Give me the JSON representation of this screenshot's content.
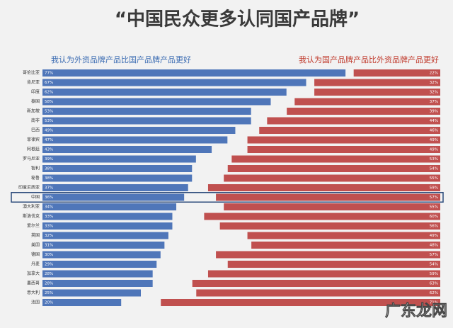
{
  "chart_data": {
    "type": "butterfly-bar",
    "title": "“中国民众更多认同国产品牌”",
    "categories": [
      "哥伦比亚",
      "肯尼亚",
      "印度",
      "泰国",
      "新加坡",
      "南非",
      "巴西",
      "菲律宾",
      "阿根廷",
      "罗马尼亚",
      "智利",
      "秘鲁",
      "印度尼西亚",
      "中国",
      "澳大利亚",
      "斯洛伐克",
      "爱尔兰",
      "英国",
      "美国",
      "德国",
      "丹麦",
      "加拿大",
      "墨西哥",
      "意大利",
      "法国"
    ],
    "series": [
      {
        "name": "我认为外资品牌产品比国产品牌产品更好",
        "color": "#4f76b9",
        "values": [
          77,
          67,
          62,
          58,
          53,
          53,
          49,
          47,
          43,
          39,
          38,
          38,
          37,
          36,
          34,
          33,
          33,
          32,
          31,
          30,
          29,
          28,
          28,
          25,
          20
        ],
        "value_labels": [
          "77%",
          "67%",
          "62%",
          "58%",
          "53%",
          "53%",
          "49%",
          "47%",
          "43%",
          "39%",
          "38%",
          "38%",
          "37%",
          "36%",
          "34%",
          "33%",
          "33%",
          "32%",
          "31%",
          "30%",
          "29%",
          "28%",
          "28%",
          "25%",
          "20%"
        ]
      },
      {
        "name": "我认为国产品牌产品比外资品牌产品更好",
        "color": "#c0504f",
        "values": [
          22,
          32,
          32,
          37,
          39,
          44,
          46,
          49,
          49,
          53,
          54,
          55,
          59,
          57,
          55,
          60,
          56,
          49,
          48,
          57,
          54,
          59,
          63,
          62,
          71
        ],
        "value_labels": [
          "22%",
          "32%",
          "32%",
          "37%",
          "39%",
          "44%",
          "46%",
          "49%",
          "49%",
          "53%",
          "54%",
          "55%",
          "59%",
          "57%",
          "55%",
          "60%",
          "56%",
          "49%",
          "48%",
          "57%",
          "54%",
          "59%",
          "63%",
          "62%",
          "71%"
        ]
      }
    ],
    "xlim": [
      0,
      100
    ],
    "highlight": "中国",
    "watermark": "广东龙网"
  }
}
